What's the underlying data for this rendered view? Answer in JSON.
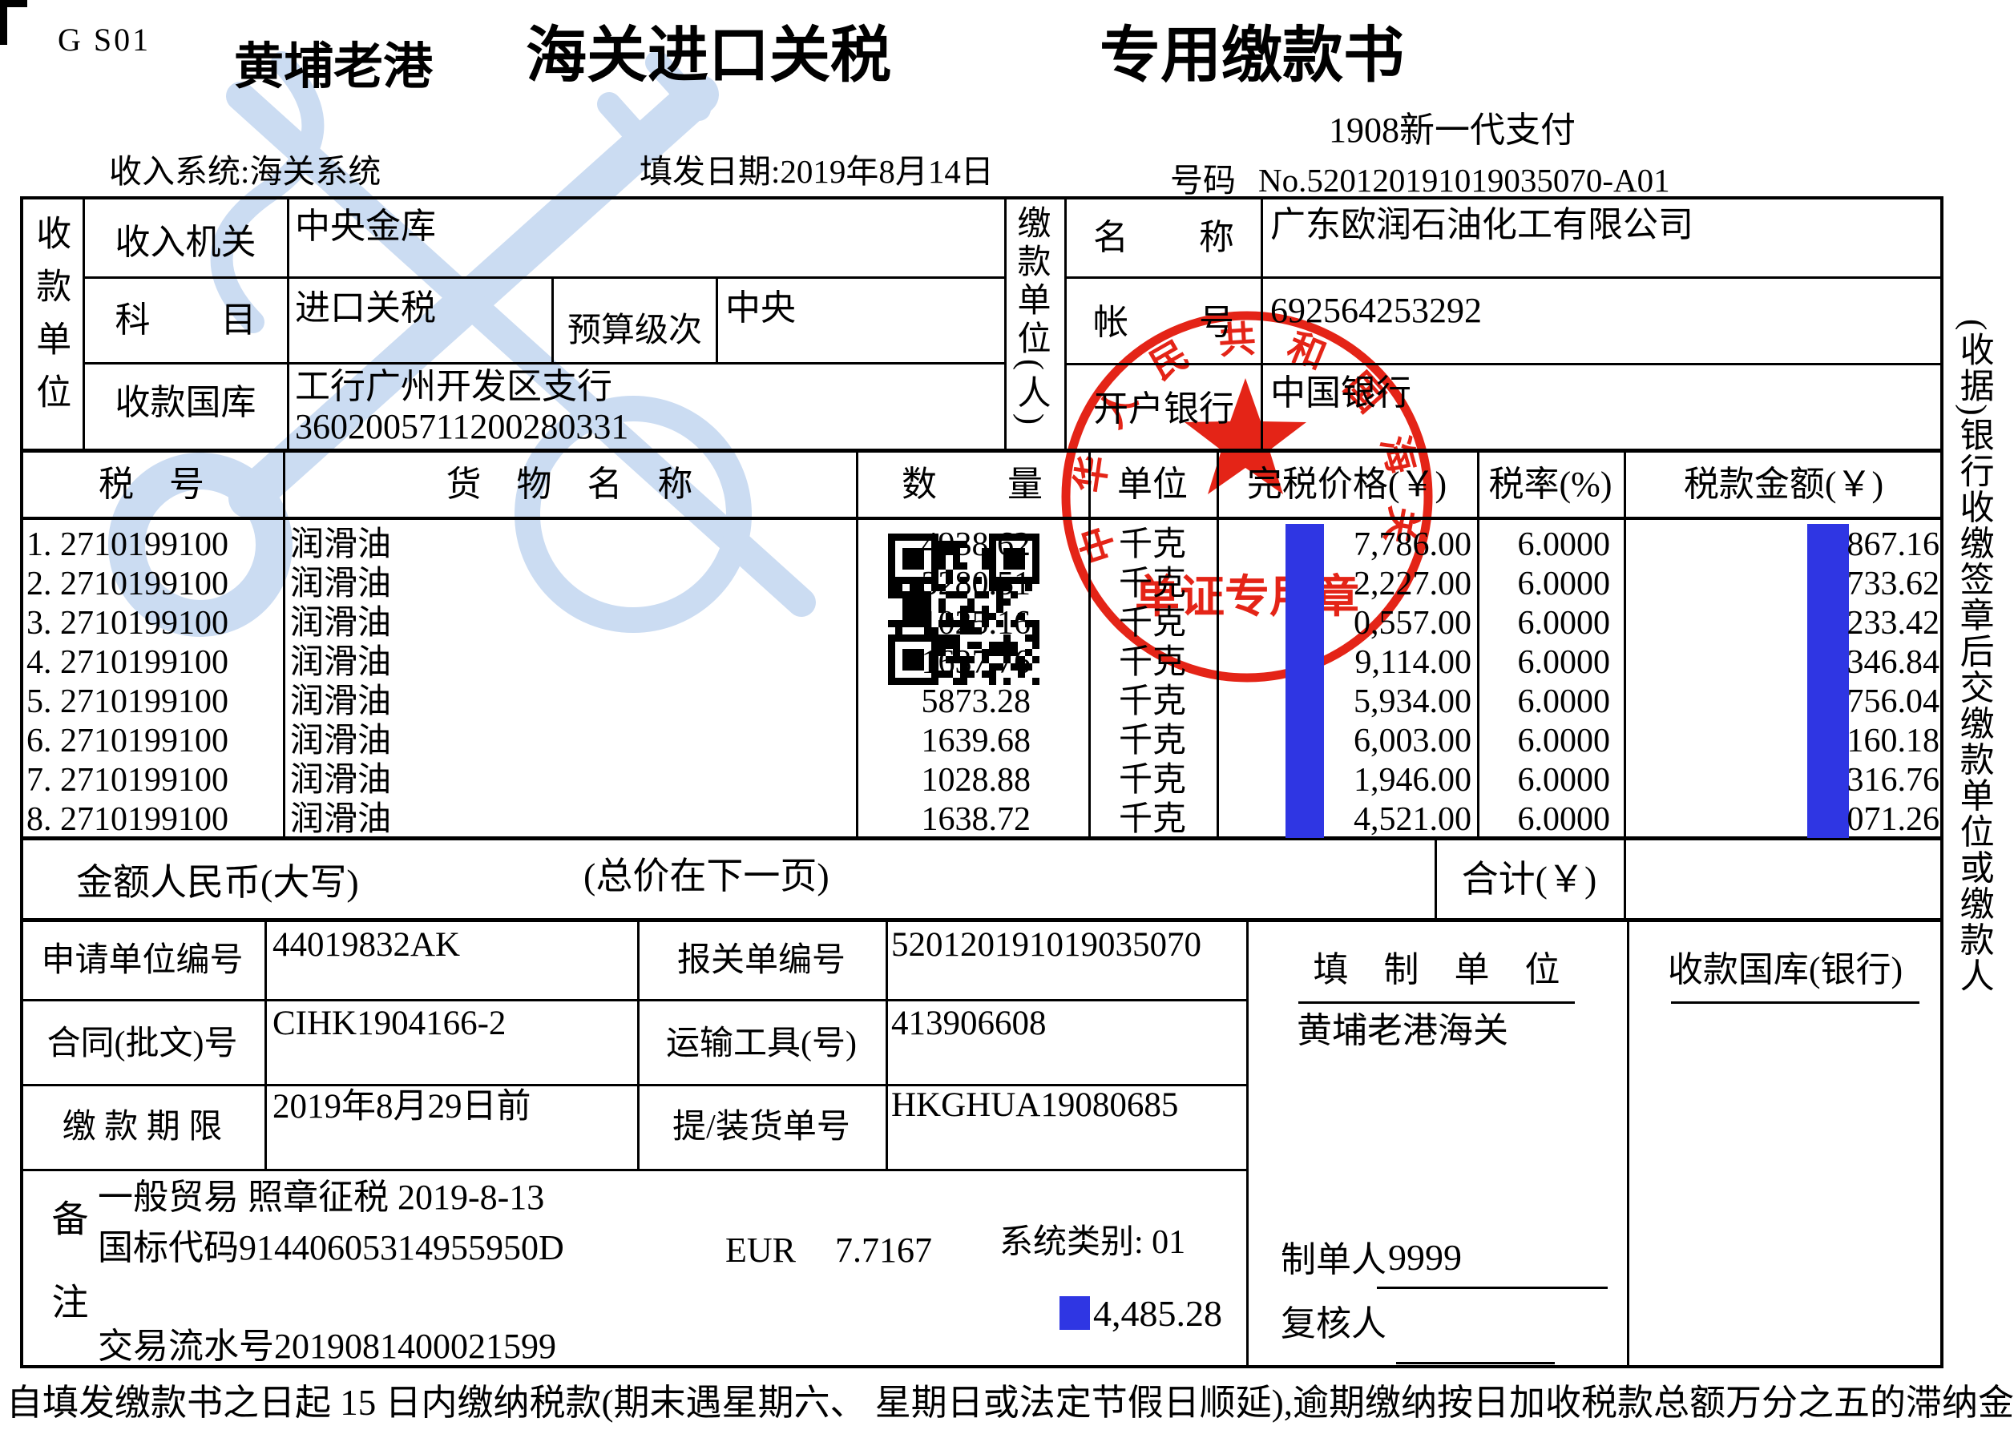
{
  "colors": {
    "redaction_blue": "#2f36e3",
    "seal_red": "#e42417",
    "watermark_blue": "#cbdcf2"
  },
  "header": {
    "form_code": "G S01",
    "port": "黄埔老港",
    "title_main": "海关进口关税",
    "title_right": "专用缴款书",
    "payment_gen": "1908新一代支付",
    "income_system": "收入系统:海关系统",
    "fill_date": "填发日期:2019年8月14日",
    "number_label": "号码",
    "number_value": "No.520120191019035070-A01"
  },
  "receiver": {
    "side_label": "收款单位",
    "row1_label": "收入机关",
    "row1_value": "中央金库",
    "row2_label": "科　　目",
    "row2_value": "进口关税",
    "row2_sub_label": "预算级次",
    "row2_sub_value": "中央",
    "row3_label": "收款国库",
    "row3_value_line1": "工行广州开发区支行",
    "row3_value_line2": "3602005711200280331"
  },
  "payer": {
    "side_label": "缴款单位(人)",
    "row1_label": "名　　称",
    "row1_value": "广东欧润石油化工有限公司",
    "row2_label": "帐　　号",
    "row2_value": "692564253292",
    "row3_label": "开户银行",
    "row3_value": "中国银行"
  },
  "tax_table": {
    "headers": {
      "no": "税　号",
      "goods": "货　物　名　称",
      "qty": "数　　量",
      "unit": "单位",
      "price": "完税价格(￥)",
      "rate": "税率(%)",
      "amount": "税款金额(￥)"
    },
    "rows": [
      {
        "no": "1. 2710199100",
        "goods": "润滑油",
        "qty": "4938.62",
        "unit": "千克",
        "price": "7,786.00",
        "rate": "6.0000",
        "amount": "867.16"
      },
      {
        "no": "2. 2710199100",
        "goods": "润滑油",
        "qty": "3280.51",
        "unit": "千克",
        "price": "2,227.00",
        "rate": "6.0000",
        "amount": "733.62"
      },
      {
        "no": "3. 2710199100",
        "goods": "润滑油",
        "qty": "1025.16",
        "unit": "千克",
        "price": "0,557.00",
        "rate": "6.0000",
        "amount": "233.42"
      },
      {
        "no": "4. 2710199100",
        "goods": "润滑油",
        "qty": "1637.76",
        "unit": "千克",
        "price": "9,114.00",
        "rate": "6.0000",
        "amount": "346.84"
      },
      {
        "no": "5. 2710199100",
        "goods": "润滑油",
        "qty": "5873.28",
        "unit": "千克",
        "price": "5,934.00",
        "rate": "6.0000",
        "amount": "756.04"
      },
      {
        "no": "6. 2710199100",
        "goods": "润滑油",
        "qty": "1639.68",
        "unit": "千克",
        "price": "6,003.00",
        "rate": "6.0000",
        "amount": "160.18"
      },
      {
        "no": "7. 2710199100",
        "goods": "润滑油",
        "qty": "1028.88",
        "unit": "千克",
        "price": "1,946.00",
        "rate": "6.0000",
        "amount": "316.76"
      },
      {
        "no": "8. 2710199100",
        "goods": "润滑油",
        "qty": "1638.72",
        "unit": "千克",
        "price": "4,521.00",
        "rate": "6.0000",
        "amount": "071.26"
      }
    ],
    "total_label": "合计(￥)"
  },
  "amount_words": {
    "label": "金额人民币(大写)",
    "note": "(总价在下一页)"
  },
  "details": {
    "row1_label": "申请单位编号",
    "row1_value": "44019832AK",
    "row1_label2": "报关单编号",
    "row1_value2": "520120191019035070",
    "row2_label": "合同(批文)号",
    "row2_value": "CIHK1904166-2",
    "row2_label2": "运输工具(号)",
    "row2_value2": "413906608",
    "row3_label": "缴 款 期 限",
    "row3_value": "2019年8月29日前",
    "row3_label2": "提/装货单号",
    "row3_value2": "HKGHUA19080685"
  },
  "remarks": {
    "side_label": "备注",
    "line1": "一般贸易 照章征税 2019-8-13",
    "line2": "国标代码91440605314955950D",
    "currency": "EUR",
    "fx_rate": "7.7167",
    "system_category": "系统类别: 01",
    "amount": "4,485.28",
    "line3": "交易流水号2019081400021599"
  },
  "filler": {
    "title": "填　制　单　位",
    "name": "黄埔老港海关",
    "maker_label": "制单人",
    "maker_value": "9999",
    "checker_label": "复核人"
  },
  "treasury": {
    "title": "收款国库(银行)"
  },
  "seal": {
    "arc_text": "中华人民共和国海关",
    "bottom_text": "单证专用章"
  },
  "side_note": "(收据)银行收缴签章后交缴款单位或缴款人",
  "footer_note": "自填发缴款书之日起 15 日内缴纳税款(期末遇星期六、 星期日或法定节假日顺延),逾期缴纳按日加收税款总额万分之五的滞纳金。"
}
